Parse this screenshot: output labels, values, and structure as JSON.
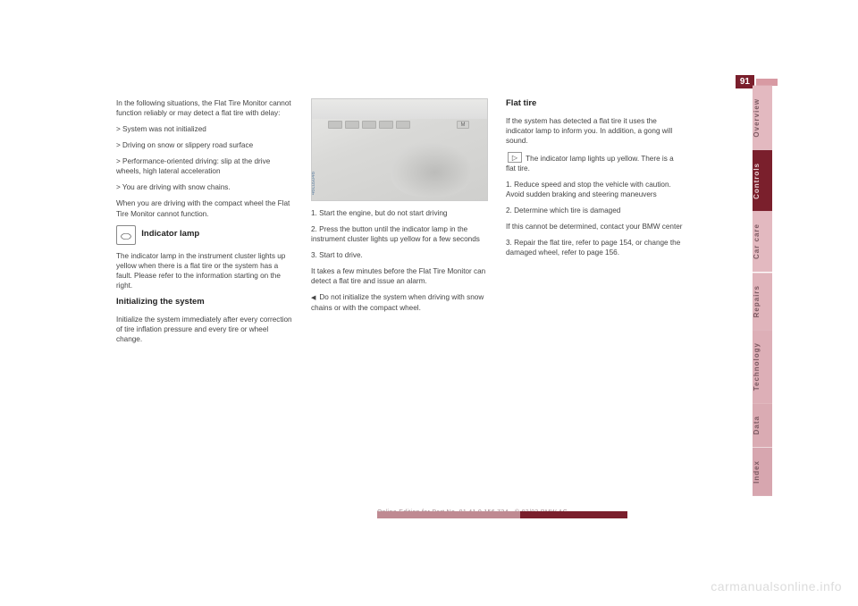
{
  "page_number": "91",
  "columns": {
    "col1": {
      "p1": "In the following situations, the Flat Tire Monitor cannot function reliably or may detect a flat tire with delay:",
      "li1": "> System was not initialized",
      "li2": "> Driving on snow or slippery road surface",
      "li3": "> Performance-oriented driving: slip at the drive wheels, high lateral acceleration",
      "li4": "> You are driving with snow chains.",
      "p2": "When you are driving with the compact wheel the Flat Tire Monitor cannot function.",
      "icon_glyph": "⬭",
      "p3_heading": "Indicator lamp",
      "p3": "The indicator lamp in the instrument cluster lights up yellow when there is a flat tire or the system has a fault. Please refer to the information starting on the right.",
      "p4_heading": "Initializing the system",
      "p4": "Initialize the system immediately after every correction of tire inflation pressure and every tire or wheel change."
    },
    "col2": {
      "photo_code": "46cus046",
      "photo_caption": "",
      "p1": "1. Start the engine, but do not start driving",
      "p2": "2. Press the button until the indicator lamp in the instrument cluster lights up yellow for a few seconds",
      "p3": "3. Start to drive.",
      "p4": "It takes a few minutes before the Flat Tire Monitor can detect a flat tire and issue an alarm.",
      "p5_bullet": "Do not initialize the system when driving with snow chains or with the compact wheel."
    },
    "col3": {
      "heading": "Flat tire",
      "p1": "If the system has detected a flat tire it uses the indicator lamp to inform you. In addition, a gong will sound.",
      "icon_glyph": "▷",
      "p2": "The indicator lamp lights up yellow. There is a flat tire.",
      "p3": "1. Reduce speed and stop the vehicle with caution. Avoid sudden braking and steering maneuvers",
      "p4": "2. Determine which tire is damaged",
      "p5": "If this cannot be determined, contact your BMW center",
      "p6": "3. Repair the flat tire, refer to page 154, or change the damaged wheel, refer to page 156."
    }
  },
  "tabs": [
    {
      "label": "Overview",
      "bg": "#e3b9c0",
      "fg": "#7e5b63"
    },
    {
      "label": "Controls",
      "bg": "#7a1f2c",
      "fg": "#e9cfd4"
    },
    {
      "label": "Car care",
      "bg": "#e3b9c0",
      "fg": "#7e5b63"
    },
    {
      "label": "Repairs",
      "bg": "#e0b4bb",
      "fg": "#7e5b63"
    },
    {
      "label": "Technology",
      "bg": "#ddafb7",
      "fg": "#7e5b63"
    },
    {
      "label": "Data",
      "bg": "#daabb3",
      "fg": "#7e5b63"
    },
    {
      "label": "Index",
      "bg": "#d7a6af",
      "fg": "#7e5b63"
    }
  ],
  "footer_text": "Online Edition for Part No. 01 41 0 156 724 - © 02/02 BMW AG",
  "footer_colors": {
    "seg1": "#bf8a92",
    "seg2": "#7a1f2c"
  },
  "watermark": "carmanualsonline.info",
  "photo": {
    "btn_m_label": "M"
  }
}
